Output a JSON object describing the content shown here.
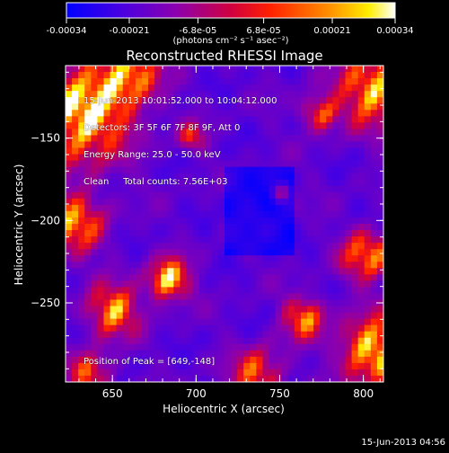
{
  "colorbar": {
    "tick_labels": [
      "-0.00034",
      "-0.00021",
      "-6.8e-05",
      "6.8e-05",
      "0.00021",
      "0.00034"
    ],
    "unit_label": "(photons cm⁻² s⁻¹ asec⁻²)",
    "range": [
      -0.00034,
      0.00034
    ],
    "colors": [
      "#0000ff",
      "#6a00d0",
      "#b000a0",
      "#ff0000",
      "#ff8000",
      "#ffff00",
      "#ffffff"
    ]
  },
  "chart_data": {
    "type": "heatmap",
    "title": "Reconstructed RHESSI Image",
    "xlabel": "Heliocentric X (arcsec)",
    "ylabel": "Heliocentric Y (arcsec)",
    "xlim": [
      622,
      812
    ],
    "ylim": [
      -298,
      -106
    ],
    "x_ticks": [
      650,
      700,
      750,
      800
    ],
    "y_ticks": [
      -150,
      -200,
      -250
    ],
    "x_tick_labels": [
      "650",
      "700",
      "750",
      "800"
    ],
    "y_tick_labels": [
      "−150",
      "−200",
      "−250"
    ],
    "annotations": [
      "15-Jun-2013 10:01:52.000 to 10:04:12.000",
      "Detectors: 3F 5F 6F 7F 8F 9F, Att 0",
      "Energy Range: 25.0 - 50.0 keV",
      "Clean     Total counts: 7.56E+03"
    ],
    "peak_label": "Position of Peak = [649,-148]",
    "peak": [
      649,
      -148
    ]
  },
  "footer": {
    "timestamp": "15-Jun-2013 04:56"
  }
}
